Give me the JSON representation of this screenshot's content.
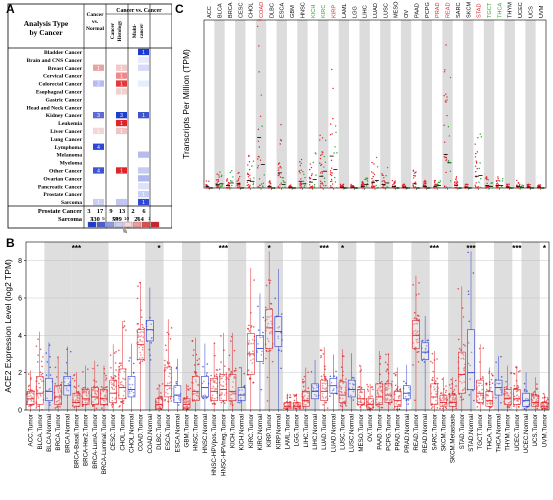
{
  "panels": {
    "a": "A",
    "b": "B",
    "c": "C"
  },
  "panel_a": {
    "header_analysis": [
      "Analysis Type",
      "by Cancer"
    ],
    "header_cancer_vs_normal": [
      "Cancer",
      "vs.",
      "Normal"
    ],
    "header_cancer_vs_cancer": "Cancer vs. Cancer",
    "header_histology": [
      "Cancer",
      "Histology"
    ],
    "header_multi": [
      "Multi-",
      "cancer"
    ],
    "rows": [
      "Bladder Cancer",
      "Brain and CNS Cancer",
      "Breast Cancer",
      "Cervical Cancer",
      "Colorectal Cancer",
      "Esophageal Cancer",
      "Gastric Cancer",
      "Head and Neck Cancer",
      "Kidney Cancer",
      "Leukemia",
      "Liver Cancer",
      "Lung Cancer",
      "Lymphoma",
      "Melanoma",
      "Myeloma",
      "Other Cancer",
      "Ovarian Cancer",
      "Pancreatic Cancer",
      "Prostate Cancer",
      "Sarcoma"
    ],
    "cells": [
      [
        {
          "c": "",
          "t": ""
        },
        {
          "c": "",
          "t": ""
        },
        {
          "c": "#1a3ad0",
          "t": "1"
        }
      ],
      [
        {
          "c": "",
          "t": ""
        },
        {
          "c": "",
          "t": ""
        },
        {
          "c": "#e8ecff",
          "t": ""
        }
      ],
      [
        {
          "c": "#e8a3a3",
          "t": "1"
        },
        {
          "c": "#f1c9c9",
          "t": "1"
        },
        {
          "c": "#d8daf7",
          "t": ""
        }
      ],
      [
        {
          "c": "",
          "t": ""
        },
        {
          "c": "#ee8a8a",
          "t": "1"
        },
        {
          "c": "",
          "t": ""
        }
      ],
      [
        {
          "c": "#b7bcef",
          "t": "2"
        },
        {
          "c": "#e23a3a",
          "t": "1"
        },
        {
          "c": "#e8ecff",
          "t": ""
        }
      ],
      [
        {
          "c": "",
          "t": ""
        },
        {
          "c": "#f3d0d0",
          "t": "1"
        },
        {
          "c": "",
          "t": ""
        }
      ],
      [
        {
          "c": "",
          "t": ""
        },
        {
          "c": "",
          "t": ""
        },
        {
          "c": "",
          "t": ""
        }
      ],
      [
        {
          "c": "",
          "t": ""
        },
        {
          "c": "",
          "t": ""
        },
        {
          "c": "",
          "t": ""
        }
      ],
      [
        {
          "c": "#5d6ad8",
          "t": "3"
        },
        {
          "c": "#1f3ec9",
          "t": "3"
        },
        {
          "c": "#3e55d2",
          "t": "1"
        }
      ],
      [
        {
          "c": "",
          "t": ""
        },
        {
          "c": "#e0242a",
          "t": "1"
        },
        {
          "c": "",
          "t": ""
        }
      ],
      [
        {
          "c": "#f3d6d6",
          "t": "1"
        },
        {
          "c": "#f2c3c3",
          "t": "1"
        },
        {
          "c": "",
          "t": ""
        }
      ],
      [
        {
          "c": "",
          "t": ""
        },
        {
          "c": "",
          "t": ""
        },
        {
          "c": "",
          "t": ""
        }
      ],
      [
        {
          "c": "#2f47d3",
          "t": "4"
        },
        {
          "c": "",
          "t": ""
        },
        {
          "c": "",
          "t": ""
        }
      ],
      [
        {
          "c": "",
          "t": ""
        },
        {
          "c": "",
          "t": ""
        },
        {
          "c": "#b4bdf0",
          "t": ""
        }
      ],
      [
        {
          "c": "",
          "t": ""
        },
        {
          "c": "",
          "t": ""
        },
        {
          "c": "",
          "t": ""
        }
      ],
      [
        {
          "c": "#3d54d4",
          "t": "4"
        },
        {
          "c": "#e0242a",
          "t": "1"
        },
        {
          "c": "#c5ccf4",
          "t": ""
        }
      ],
      [
        {
          "c": "",
          "t": ""
        },
        {
          "c": "",
          "t": ""
        },
        {
          "c": "#aeb7ef",
          "t": ""
        }
      ],
      [
        {
          "c": "",
          "t": ""
        },
        {
          "c": "",
          "t": ""
        },
        {
          "c": "#dde2fa",
          "t": ""
        }
      ],
      [
        {
          "c": "",
          "t": ""
        },
        {
          "c": "",
          "t": ""
        },
        {
          "c": "#c8cff5",
          "t": "1"
        }
      ],
      [
        {
          "c": "#c8cef4",
          "t": "1"
        },
        {
          "c": "#c1c7f2",
          "t": ""
        },
        {
          "c": "#2f47d3",
          "t": "1"
        }
      ]
    ],
    "totals_label": [
      "Prostate Cancer",
      "Sarcoma"
    ],
    "totals_row1": [
      "3",
      "17",
      "9",
      "13",
      "2",
      "6"
    ],
    "totals_row2": [
      "330",
      "599",
      "214"
    ],
    "legend_ticks": [
      "1",
      "5",
      "10",
      "10",
      "5",
      "1"
    ],
    "legend_colors": [
      "#1a3ad0",
      "#4c5ed4",
      "#8e9ae4",
      "#c9cef3",
      "#f7d6d6",
      "#ee9b9b",
      "#e44c4c",
      "#d81e24"
    ],
    "legend_pct": "%"
  },
  "panel_c": {
    "ylabel": "Transcripts Per Million (TPM)",
    "cancers": [
      "ACC",
      "BLCA",
      "BRCA",
      "CESC",
      "CHOL",
      "COAD",
      "DLBC",
      "ESCA",
      "GBM",
      "HNSC",
      "KICH",
      "KIRC",
      "KIRP",
      "LAML",
      "LGG",
      "LIHC",
      "LUAD",
      "LUSC",
      "MESO",
      "OV",
      "PAAD",
      "PCPG",
      "PRAD",
      "READ",
      "SARC",
      "SKCM",
      "STAD",
      "TGCT",
      "THCA",
      "THYM",
      "UCEC",
      "UCS",
      "UVM"
    ],
    "label_colors": [
      "#000000",
      "#000000",
      "#000000",
      "#000000",
      "#000000",
      "#e0242a",
      "#000000",
      "#000000",
      "#000000",
      "#000000",
      "#2aa52a",
      "#2aa52a",
      "#e0242a",
      "#000000",
      "#000000",
      "#000000",
      "#000000",
      "#000000",
      "#000000",
      "#000000",
      "#000000",
      "#000000",
      "#e0242a",
      "#e0242a",
      "#000000",
      "#000000",
      "#e0242a",
      "#2aa52a",
      "#2aa52a",
      "#000000",
      "#000000",
      "#000000",
      "#000000"
    ]
  },
  "panel_b": {
    "ylabel": "ACE2 Expression Level (log2 TPM)",
    "yticks": [
      "0",
      "2",
      "4",
      "6",
      "8"
    ],
    "significance": [
      {
        "index": 5,
        "mark": "***"
      },
      {
        "index": 14,
        "mark": "*"
      },
      {
        "index": 21,
        "mark": "***"
      },
      {
        "index": 26,
        "mark": "*"
      },
      {
        "index": 32,
        "mark": "***"
      },
      {
        "index": 34,
        "mark": "*"
      },
      {
        "index": 44,
        "mark": "***"
      },
      {
        "index": 48,
        "mark": "***"
      },
      {
        "index": 53,
        "mark": "***"
      },
      {
        "index": 56,
        "mark": "*"
      }
    ]
  },
  "chart_data": [
    {
      "type": "box",
      "title": "",
      "ylabel": "ACE2 Expression Level (log2 TPM)",
      "ylim": [
        0,
        9
      ],
      "grid": "on",
      "categories": [
        "ACC.Tumor",
        "BLCA.Tumor",
        "BLCA.Normal",
        "BRCA.Tumor",
        "BRCA.Normal",
        "BRCA.Basal.Tumor",
        "BRCA.Her2.Tumor",
        "BRCA.LumA.Tumor",
        "BRCA.Luminal.Tumor",
        "CESC.Tumor",
        "CHOL.Tumor",
        "CHOL.Normal",
        "COAD.Tumor",
        "COAD.Normal",
        "DLBC.Tumor",
        "ESCA.Tumor",
        "ESCA.Normal",
        "GBM.Tumor",
        "HNSC.Tumor",
        "HNSC.Normal",
        "HNSC.HPVpos.Tumor",
        "HNSC.HPVneg.Tumor",
        "KICH.Tumor",
        "KICH.Normal",
        "KIRC.Tumor",
        "KIRC.Normal",
        "KIRP.Tumor",
        "KIRP.Normal",
        "LAML.Tumor",
        "LGG.Tumor",
        "LIHC.Tumor",
        "LIHC.Normal",
        "LUAD.Tumor",
        "LUAD.Normal",
        "LUSC.Tumor",
        "LUSC.Normal",
        "MESO.Tumor",
        "OV.Tumor",
        "PAAD.Tumor",
        "PCPG.Tumor",
        "PRAD.Tumor",
        "PRAD.Normal",
        "READ.Tumor",
        "READ.Normal",
        "SARC.Tumor",
        "SKCM.Tumor",
        "SKCM.Metastasis",
        "STAD.Tumor",
        "STAD.Normal",
        "TGCT.Tumor",
        "THCA.Tumor",
        "THCA.Normal",
        "THYM.Tumor",
        "UCEC.Tumor",
        "UCEC.Normal",
        "UCS.Tumor",
        "UVM.Tumor"
      ],
      "tick_labels": [
        "ACC.Tumor",
        "BLCA.Tumor",
        "BLCA.Normal",
        "BRCA.Tumor",
        "BRCA.Normal",
        "BRCA-Basal.Tumor",
        "BRCA-Her2.Tumor",
        "BRCA-LumA.Tumor",
        "BRCA-Luminal.Tumor",
        "CESC.Tumor",
        "CHOL.Tumor",
        "CHOL.Normal",
        "COAD.Tumor",
        "COAD.Normal",
        "DLBC.Tumor",
        "ESCA.Tumor",
        "ESCA.Normal",
        "GBM.Tumor",
        "HNSC.Tumor",
        "HNSC.Normal",
        "HNSC-HPVpos.Tumor",
        "HNSC-HPVneg.Tumor",
        "KICH.Tumor",
        "KICH.Normal",
        "KIRC.Tumor",
        "KIRC.Normal",
        "KIRP.Tumor",
        "KIRP.Normal",
        "LAML.Tumor",
        "LGG.Tumor",
        "LIHC.Tumor",
        "LIHC.Normal",
        "LUAD.Tumor",
        "LUAD.Normal",
        "LUSC.Tumor",
        "LUSC.Normal",
        "MESO.Tumor",
        "OV.Tumor",
        "PAAD.Tumor",
        "PCPG.Tumor",
        "PRAD.Tumor",
        "PRAD.Normal",
        "READ.Tumor",
        "READ.Normal",
        "SARC.Tumor",
        "SKCM.Tumor",
        "SKCM.Metastasis",
        "STAD.Tumor",
        "STAD.Normal",
        "TGCT.Tumor",
        "THCA.Tumor",
        "THCA.Normal",
        "THYM.Tumor",
        "UCEC.Tumor",
        "UCEC.Normal",
        "UCS.Tumor",
        "UVM.Tumor"
      ],
      "box_color": {
        "Tumor": "#e0242a",
        "Normal": "#2a3ed0"
      },
      "medians": [
        0.6,
        0.9,
        1.0,
        0.7,
        1.3,
        0.4,
        0.6,
        0.7,
        0.6,
        0.9,
        1.2,
        1.1,
        3.5,
        4.3,
        0.3,
        1.3,
        0.8,
        0.3,
        1.0,
        1.2,
        1.0,
        1.1,
        1.0,
        0.8,
        3.0,
        3.3,
        4.4,
        4.2,
        0.2,
        0.2,
        0.5,
        1.0,
        1.0,
        1.3,
        0.8,
        1.1,
        0.6,
        0.3,
        0.7,
        0.8,
        0.5,
        0.9,
        4.0,
        3.1,
        0.7,
        0.4,
        0.4,
        1.9,
        2.0,
        0.9,
        0.5,
        1.2,
        0.6,
        0.6,
        0.5,
        0.4,
        0.2
      ],
      "q1": [
        0.3,
        0.3,
        0.5,
        0.3,
        0.8,
        0.2,
        0.3,
        0.3,
        0.3,
        0.4,
        0.6,
        0.7,
        2.7,
        3.7,
        0.1,
        0.7,
        0.4,
        0.1,
        0.5,
        0.7,
        0.5,
        0.5,
        0.5,
        0.5,
        1.9,
        2.6,
        3.3,
        3.4,
        0.1,
        0.1,
        0.2,
        0.6,
        0.5,
        0.9,
        0.4,
        0.7,
        0.3,
        0.1,
        0.3,
        0.4,
        0.2,
        0.6,
        3.3,
        2.7,
        0.3,
        0.2,
        0.2,
        0.9,
        1.1,
        0.4,
        0.2,
        0.8,
        0.3,
        0.3,
        0.2,
        0.2,
        0.1
      ],
      "q3": [
        1.0,
        1.8,
        1.7,
        1.3,
        1.8,
        0.9,
        1.1,
        1.2,
        1.1,
        1.6,
        2.2,
        1.8,
        4.3,
        4.8,
        0.6,
        2.3,
        1.3,
        0.6,
        1.8,
        1.8,
        1.7,
        1.9,
        1.9,
        1.2,
        4.1,
        4.0,
        5.4,
        5.0,
        0.4,
        0.4,
        1.0,
        1.4,
        1.6,
        1.7,
        1.5,
        1.6,
        1.1,
        0.6,
        1.4,
        1.4,
        1.0,
        1.3,
        4.8,
        3.6,
        1.4,
        0.8,
        0.8,
        3.1,
        4.3,
        1.6,
        1.0,
        1.6,
        1.1,
        1.1,
        0.9,
        0.8,
        0.4
      ],
      "significance_marks": [
        "***",
        "*",
        "***",
        "*",
        "***",
        "*",
        "***",
        "***",
        "***",
        "*"
      ]
    },
    {
      "type": "scatter",
      "title": "",
      "ylabel": "Transcripts Per Million (TPM)",
      "categories": [
        "ACC",
        "BLCA",
        "BRCA",
        "CESC",
        "CHOL",
        "COAD",
        "DLBC",
        "ESCA",
        "GBM",
        "HNSC",
        "KICH",
        "KIRC",
        "KIRP",
        "LAML",
        "LGG",
        "LIHC",
        "LUAD",
        "LUSC",
        "MESO",
        "OV",
        "PAAD",
        "PCPG",
        "PRAD",
        "READ",
        "SARC",
        "SKCM",
        "STAD",
        "TGCT",
        "THCA",
        "THYM",
        "UCEC",
        "UCS",
        "UVM"
      ],
      "series": [
        {
          "name": "Tumor",
          "values": [
            2,
            4,
            3,
            5,
            9,
            60,
            2,
            18,
            1,
            8,
            7,
            14,
            38,
            1,
            1,
            2,
            7,
            4,
            2,
            1,
            5,
            2,
            2,
            40,
            3,
            1,
            14,
            3,
            3,
            1,
            2,
            1,
            1
          ]
        },
        {
          "name": "Normal",
          "values": [
            0,
            5,
            6,
            0,
            8,
            28,
            0,
            4,
            0,
            5,
            10,
            20,
            22,
            0,
            0,
            4,
            9,
            6,
            0,
            0,
            0,
            0,
            3,
            30,
            0,
            0,
            15,
            2,
            3,
            0,
            1,
            0,
            0
          ]
        }
      ]
    }
  ]
}
